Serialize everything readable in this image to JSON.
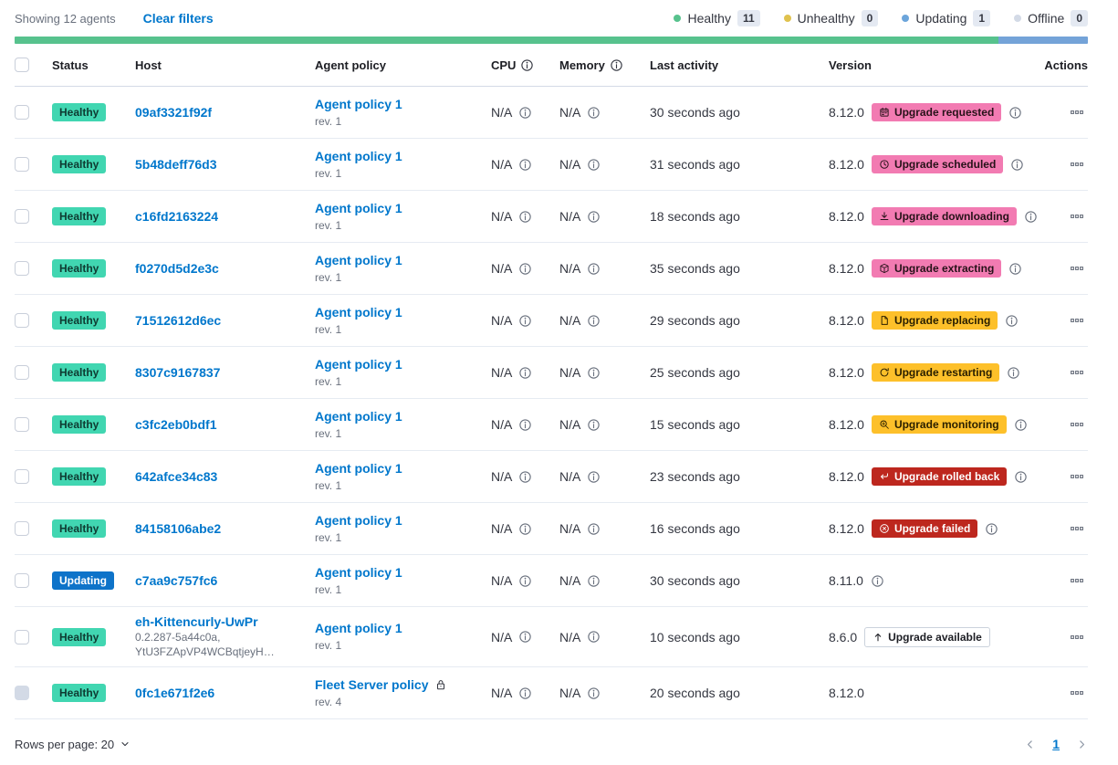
{
  "toolbar": {
    "showing": "Showing 12 agents",
    "clear_filters": "Clear filters"
  },
  "legend": [
    {
      "label": "Healthy",
      "count": "11",
      "dot_color": "#57C28D"
    },
    {
      "label": "Unhealthy",
      "count": "0",
      "dot_color": "#E0C24E"
    },
    {
      "label": "Updating",
      "count": "1",
      "dot_color": "#6CA5DB"
    },
    {
      "label": "Offline",
      "count": "0",
      "dot_color": "#D3DAE6"
    }
  ],
  "progress_bar": {
    "segments": [
      {
        "status": "healthy",
        "color": "#57C28D",
        "fraction": 0.9167
      },
      {
        "status": "updating",
        "color": "#74A3D8",
        "fraction": 0.0833
      }
    ]
  },
  "columns": {
    "status": "Status",
    "host": "Host",
    "policy": "Agent policy",
    "cpu": "CPU",
    "memory": "Memory",
    "last_activity": "Last activity",
    "version": "Version",
    "actions": "Actions"
  },
  "rows": [
    {
      "status": {
        "label": "Healthy",
        "kind": "healthy"
      },
      "host": {
        "name": "09af3321f92f",
        "sublines": []
      },
      "policy": {
        "name": "Agent policy 1",
        "rev": "rev. 1",
        "locked": false
      },
      "cpu": "N/A",
      "memory": "N/A",
      "last_activity": "30 seconds ago",
      "version": "8.12.0",
      "upgrade": {
        "label": "Upgrade requested",
        "kind": "pink",
        "icon": "calendar-icon"
      },
      "version_info": true,
      "checkbox_disabled": false
    },
    {
      "status": {
        "label": "Healthy",
        "kind": "healthy"
      },
      "host": {
        "name": "5b48deff76d3",
        "sublines": []
      },
      "policy": {
        "name": "Agent policy 1",
        "rev": "rev. 1",
        "locked": false
      },
      "cpu": "N/A",
      "memory": "N/A",
      "last_activity": "31 seconds ago",
      "version": "8.12.0",
      "upgrade": {
        "label": "Upgrade scheduled",
        "kind": "pink",
        "icon": "clock-icon"
      },
      "version_info": true,
      "checkbox_disabled": false
    },
    {
      "status": {
        "label": "Healthy",
        "kind": "healthy"
      },
      "host": {
        "name": "c16fd2163224",
        "sublines": []
      },
      "policy": {
        "name": "Agent policy 1",
        "rev": "rev. 1",
        "locked": false
      },
      "cpu": "N/A",
      "memory": "N/A",
      "last_activity": "18 seconds ago",
      "version": "8.12.0",
      "upgrade": {
        "label": "Upgrade downloading",
        "kind": "pink",
        "icon": "download-icon"
      },
      "version_info": true,
      "checkbox_disabled": false
    },
    {
      "status": {
        "label": "Healthy",
        "kind": "healthy"
      },
      "host": {
        "name": "f0270d5d2e3c",
        "sublines": []
      },
      "policy": {
        "name": "Agent policy 1",
        "rev": "rev. 1",
        "locked": false
      },
      "cpu": "N/A",
      "memory": "N/A",
      "last_activity": "35 seconds ago",
      "version": "8.12.0",
      "upgrade": {
        "label": "Upgrade extracting",
        "kind": "pink",
        "icon": "package-icon"
      },
      "version_info": true,
      "checkbox_disabled": false
    },
    {
      "status": {
        "label": "Healthy",
        "kind": "healthy"
      },
      "host": {
        "name": "71512612d6ec",
        "sublines": []
      },
      "policy": {
        "name": "Agent policy 1",
        "rev": "rev. 1",
        "locked": false
      },
      "cpu": "N/A",
      "memory": "N/A",
      "last_activity": "29 seconds ago",
      "version": "8.12.0",
      "upgrade": {
        "label": "Upgrade replacing",
        "kind": "warning",
        "icon": "document-icon"
      },
      "version_info": true,
      "checkbox_disabled": false
    },
    {
      "status": {
        "label": "Healthy",
        "kind": "healthy"
      },
      "host": {
        "name": "8307c9167837",
        "sublines": []
      },
      "policy": {
        "name": "Agent policy 1",
        "rev": "rev. 1",
        "locked": false
      },
      "cpu": "N/A",
      "memory": "N/A",
      "last_activity": "25 seconds ago",
      "version": "8.12.0",
      "upgrade": {
        "label": "Upgrade restarting",
        "kind": "warning",
        "icon": "refresh-icon"
      },
      "version_info": true,
      "checkbox_disabled": false
    },
    {
      "status": {
        "label": "Healthy",
        "kind": "healthy"
      },
      "host": {
        "name": "c3fc2eb0bdf1",
        "sublines": []
      },
      "policy": {
        "name": "Agent policy 1",
        "rev": "rev. 1",
        "locked": false
      },
      "cpu": "N/A",
      "memory": "N/A",
      "last_activity": "15 seconds ago",
      "version": "8.12.0",
      "upgrade": {
        "label": "Upgrade monitoring",
        "kind": "warning",
        "icon": "inspect-icon"
      },
      "version_info": true,
      "checkbox_disabled": false
    },
    {
      "status": {
        "label": "Healthy",
        "kind": "healthy"
      },
      "host": {
        "name": "642afce34c83",
        "sublines": []
      },
      "policy": {
        "name": "Agent policy 1",
        "rev": "rev. 1",
        "locked": false
      },
      "cpu": "N/A",
      "memory": "N/A",
      "last_activity": "23 seconds ago",
      "version": "8.12.0",
      "upgrade": {
        "label": "Upgrade rolled back",
        "kind": "danger",
        "icon": "return-icon"
      },
      "version_info": true,
      "checkbox_disabled": false
    },
    {
      "status": {
        "label": "Healthy",
        "kind": "healthy"
      },
      "host": {
        "name": "84158106abe2",
        "sublines": []
      },
      "policy": {
        "name": "Agent policy 1",
        "rev": "rev. 1",
        "locked": false
      },
      "cpu": "N/A",
      "memory": "N/A",
      "last_activity": "16 seconds ago",
      "version": "8.12.0",
      "upgrade": {
        "label": "Upgrade failed",
        "kind": "danger",
        "icon": "error-icon"
      },
      "version_info": true,
      "checkbox_disabled": false
    },
    {
      "status": {
        "label": "Updating",
        "kind": "updating"
      },
      "host": {
        "name": "c7aa9c757fc6",
        "sublines": []
      },
      "policy": {
        "name": "Agent policy 1",
        "rev": "rev. 1",
        "locked": false
      },
      "cpu": "N/A",
      "memory": "N/A",
      "last_activity": "30 seconds ago",
      "version": "8.11.0",
      "upgrade": null,
      "version_info": true,
      "checkbox_disabled": false
    },
    {
      "status": {
        "label": "Healthy",
        "kind": "healthy"
      },
      "host": {
        "name": "eh-Kittencurly-UwPr",
        "sublines": [
          "0.2.287-5a44c0a,",
          "YtU3FZApVP4WCBqtjeyH…"
        ]
      },
      "policy": {
        "name": "Agent policy 1",
        "rev": "rev. 1",
        "locked": false
      },
      "cpu": "N/A",
      "memory": "N/A",
      "last_activity": "10 seconds ago",
      "version": "8.6.0",
      "upgrade": {
        "label": "Upgrade available",
        "kind": "hollow",
        "icon": "arrow-up-icon"
      },
      "version_info": false,
      "checkbox_disabled": false
    },
    {
      "status": {
        "label": "Healthy",
        "kind": "healthy"
      },
      "host": {
        "name": "0fc1e671f2e6",
        "sublines": []
      },
      "policy": {
        "name": "Fleet Server policy",
        "rev": "rev. 4",
        "locked": true
      },
      "cpu": "N/A",
      "memory": "N/A",
      "last_activity": "20 seconds ago",
      "version": "8.12.0",
      "upgrade": null,
      "version_info": false,
      "checkbox_disabled": true
    }
  ],
  "footer": {
    "rows_per_page": "Rows per page: 20",
    "page": "1"
  }
}
